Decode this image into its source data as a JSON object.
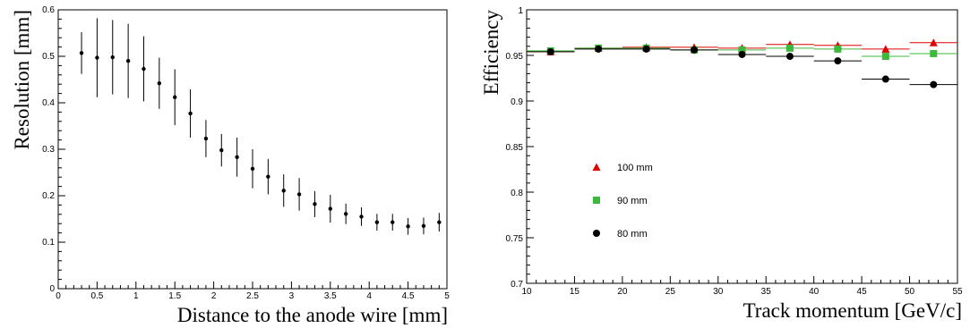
{
  "chart_data": [
    {
      "type": "scatter",
      "xlabel": "Distance to the anode wire [mm]",
      "ylabel": "Resolution [mm]",
      "xlim": [
        0,
        5
      ],
      "ylim": [
        0,
        0.6
      ],
      "xticks": [
        0,
        0.5,
        1,
        1.5,
        2,
        2.5,
        3,
        3.5,
        4,
        4.5,
        5
      ],
      "xtick_labels": [
        "0",
        "0.5",
        "1",
        "1.5",
        "2",
        "2.5",
        "3",
        "3.5",
        "4",
        "4.5",
        "5"
      ],
      "yticks": [
        0,
        0.1,
        0.2,
        0.3,
        0.4,
        0.5,
        0.6
      ],
      "ytick_labels": [
        "0",
        "0.1",
        "0.2",
        "0.3",
        "0.4",
        "0.5",
        "0.6"
      ],
      "grid": false,
      "color": "#000000",
      "points": [
        {
          "x": 0.3,
          "y": 0.507,
          "err": 0.045
        },
        {
          "x": 0.5,
          "y": 0.497,
          "err": 0.085
        },
        {
          "x": 0.7,
          "y": 0.498,
          "err": 0.08
        },
        {
          "x": 0.9,
          "y": 0.49,
          "err": 0.08
        },
        {
          "x": 1.1,
          "y": 0.473,
          "err": 0.07
        },
        {
          "x": 1.3,
          "y": 0.442,
          "err": 0.055
        },
        {
          "x": 1.5,
          "y": 0.412,
          "err": 0.06
        },
        {
          "x": 1.7,
          "y": 0.377,
          "err": 0.052
        },
        {
          "x": 1.9,
          "y": 0.323,
          "err": 0.04
        },
        {
          "x": 2.1,
          "y": 0.298,
          "err": 0.035
        },
        {
          "x": 2.3,
          "y": 0.283,
          "err": 0.042
        },
        {
          "x": 2.5,
          "y": 0.258,
          "err": 0.042
        },
        {
          "x": 2.7,
          "y": 0.241,
          "err": 0.038
        },
        {
          "x": 2.9,
          "y": 0.211,
          "err": 0.035
        },
        {
          "x": 3.1,
          "y": 0.203,
          "err": 0.035
        },
        {
          "x": 3.3,
          "y": 0.182,
          "err": 0.028
        },
        {
          "x": 3.5,
          "y": 0.172,
          "err": 0.03
        },
        {
          "x": 3.7,
          "y": 0.161,
          "err": 0.022
        },
        {
          "x": 3.9,
          "y": 0.155,
          "err": 0.02
        },
        {
          "x": 4.1,
          "y": 0.143,
          "err": 0.018
        },
        {
          "x": 4.3,
          "y": 0.143,
          "err": 0.018
        },
        {
          "x": 4.5,
          "y": 0.134,
          "err": 0.018
        },
        {
          "x": 4.7,
          "y": 0.135,
          "err": 0.018
        },
        {
          "x": 4.9,
          "y": 0.143,
          "err": 0.02
        }
      ]
    },
    {
      "type": "scatter",
      "xlabel": "Track momentum [GeV/c]",
      "ylabel": "Efficiency",
      "xlim": [
        10,
        55
      ],
      "ylim": [
        0.7,
        1
      ],
      "xticks": [
        10,
        15,
        20,
        25,
        30,
        35,
        40,
        45,
        50,
        55
      ],
      "xtick_labels": [
        "10",
        "15",
        "20",
        "25",
        "30",
        "35",
        "40",
        "45",
        "50",
        "55"
      ],
      "yticks": [
        0.7,
        0.75,
        0.8,
        0.85,
        0.9,
        0.95,
        1
      ],
      "ytick_labels": [
        "0.7",
        "0.75",
        "0.8",
        "0.85",
        "0.9",
        "0.95",
        "1"
      ],
      "grid": false,
      "legend_position": "left-middle",
      "x": [
        12.5,
        17.5,
        22.5,
        27.5,
        32.5,
        37.5,
        42.5,
        47.5,
        52.5
      ],
      "bin_half_width": 2.5,
      "series": [
        {
          "name": "100 mm",
          "marker": "triangle",
          "color": "#e00000",
          "values": [
            0.954,
            0.958,
            0.959,
            0.959,
            0.958,
            0.962,
            0.961,
            0.957,
            0.964
          ]
        },
        {
          "name": "90 mm",
          "marker": "square",
          "color": "#3cb93c",
          "values": [
            0.955,
            0.958,
            0.958,
            0.956,
            0.956,
            0.958,
            0.957,
            0.949,
            0.952
          ]
        },
        {
          "name": "80 mm",
          "marker": "circle",
          "color": "#000000",
          "values": [
            0.954,
            0.957,
            0.957,
            0.956,
            0.951,
            0.949,
            0.944,
            0.924,
            0.918
          ]
        }
      ]
    }
  ]
}
